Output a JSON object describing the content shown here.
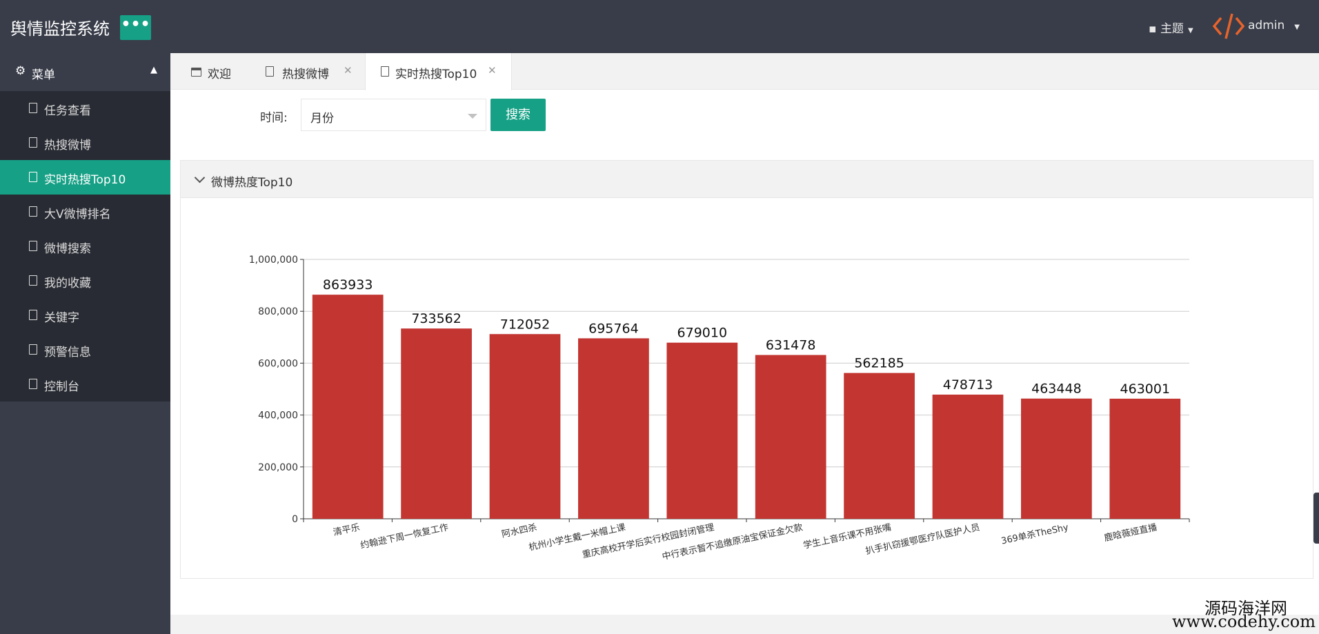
{
  "app": {
    "title": "舆情监控系统",
    "menu_toggle": "•••",
    "theme_label": "主题",
    "user_name": "admin"
  },
  "sidebar": {
    "header": "菜单",
    "items": [
      {
        "label": "任务查看",
        "active": false
      },
      {
        "label": "热搜微博",
        "active": false
      },
      {
        "label": "实时热搜Top10",
        "active": true
      },
      {
        "label": "大V微博排名",
        "active": false
      },
      {
        "label": "微博搜索",
        "active": false
      },
      {
        "label": "我的收藏",
        "active": false
      },
      {
        "label": "关键字",
        "active": false
      },
      {
        "label": "预警信息",
        "active": false
      },
      {
        "label": "控制台",
        "active": false
      }
    ]
  },
  "tabs": [
    {
      "label": "欢迎",
      "closable": false,
      "active": false
    },
    {
      "label": "热搜微博",
      "closable": true,
      "active": false
    },
    {
      "label": "实时热搜Top10",
      "closable": true,
      "active": true
    }
  ],
  "filter": {
    "time_label": "时间:",
    "select_value": "月份",
    "search_button": "搜索"
  },
  "panel": {
    "title": "微博热度Top10"
  },
  "colors": {
    "header_bg": "#393d49",
    "sidebar_list_bg": "#282b33",
    "accent": "#16a085",
    "bar": "#c23531"
  },
  "chart_data": {
    "type": "bar",
    "categories": [
      "清平乐",
      "约翰逊下周一恢复工作",
      "阿水四杀",
      "杭州小学生戴一米帽上课",
      "重庆高校开学后实行校园封闭管理",
      "中行表示暂不追缴原油宝保证金欠款",
      "学生上音乐课不用张嘴",
      "扒手扒窃援鄂医疗队医护人员",
      "369单杀TheShy",
      "鹿晗薇娅直播"
    ],
    "values": [
      863933,
      733562,
      712052,
      695764,
      679010,
      631478,
      562185,
      478713,
      463448,
      463001
    ],
    "ylim": [
      0,
      1000000
    ],
    "yticks": [
      "0",
      "200,000",
      "400,000",
      "600,000",
      "800,000",
      "1,000,000"
    ],
    "grid": true,
    "data_labels": true
  },
  "watermark": {
    "line1": "源码海洋网",
    "line2": "www.codehy.com"
  }
}
